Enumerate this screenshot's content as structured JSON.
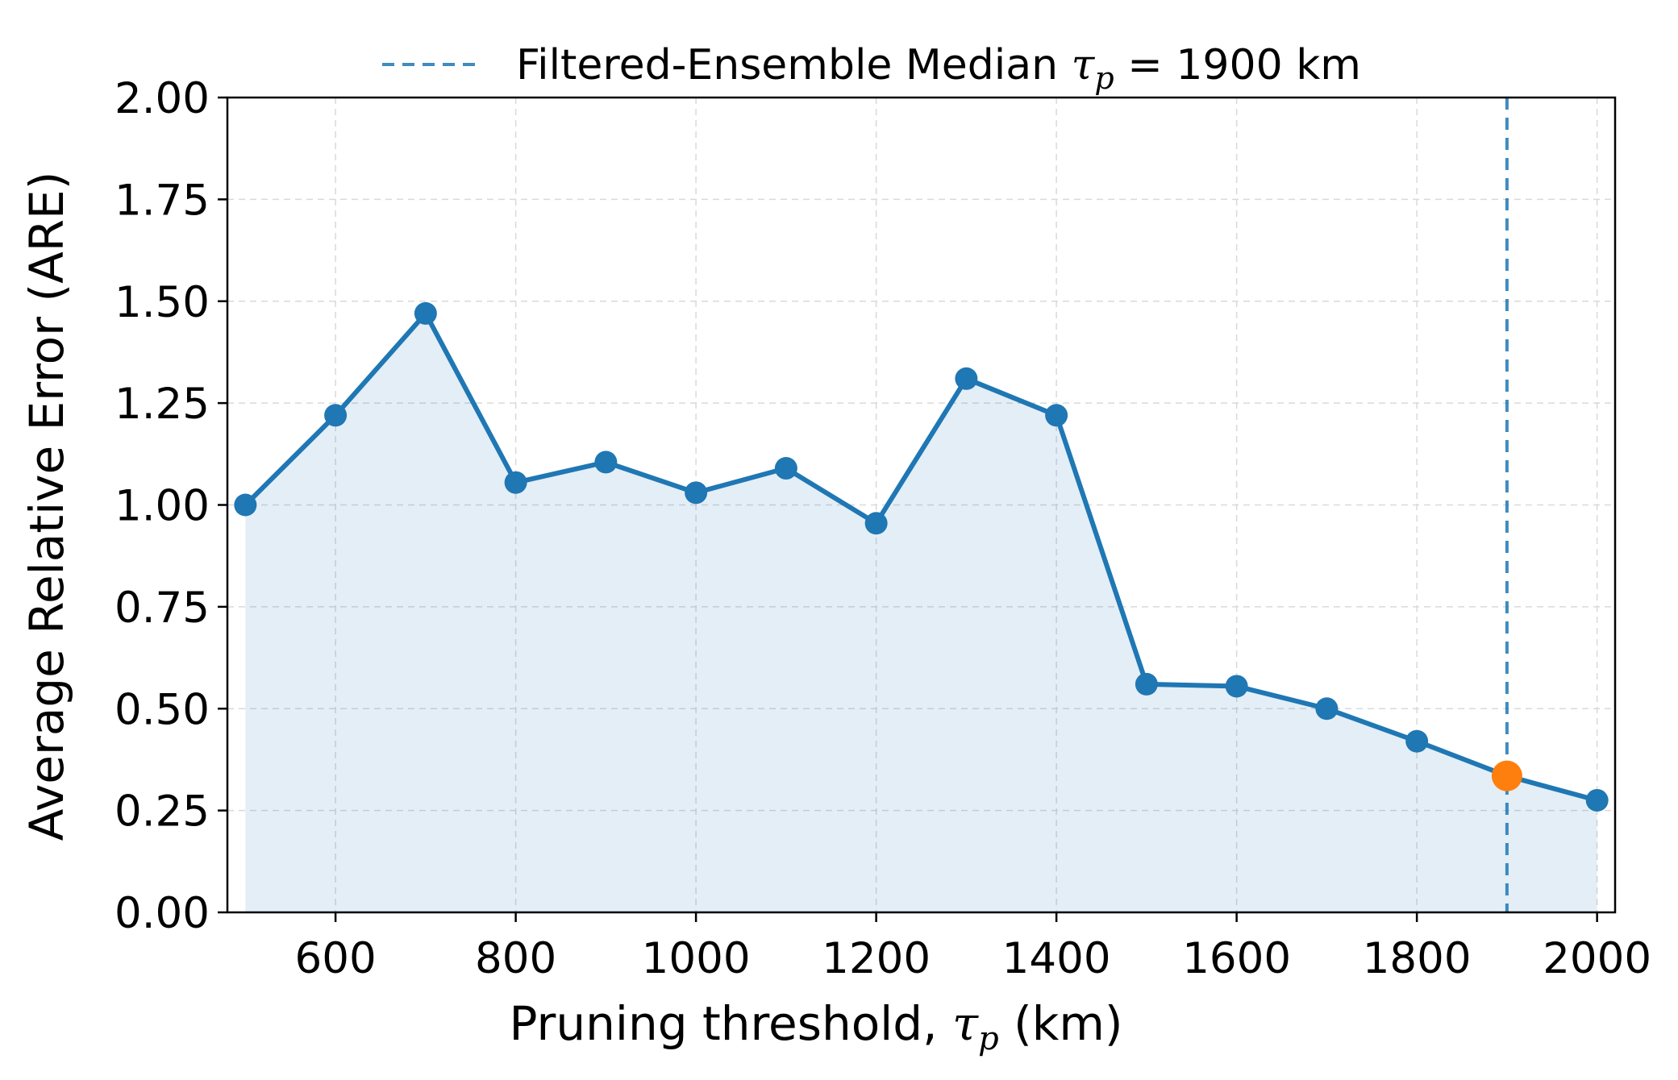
{
  "chart_data": {
    "type": "line",
    "xlabel": {
      "prefix": "Pruning threshold, ",
      "symbol": "τ",
      "sub": "p",
      "suffix": " (km)"
    },
    "ylabel": "Average Relative Error (ARE)",
    "xlim": [
      480,
      2020
    ],
    "ylim": [
      0,
      2
    ],
    "x_ticks": [
      600,
      800,
      1000,
      1200,
      1400,
      1600,
      1800,
      2000
    ],
    "x_tick_labels": [
      "600",
      "800",
      "1000",
      "1200",
      "1400",
      "1600",
      "1800",
      "2000"
    ],
    "y_ticks": [
      0,
      0.25,
      0.5,
      0.75,
      1.0,
      1.25,
      1.5,
      1.75,
      2.0
    ],
    "y_tick_labels": [
      "0.00",
      "0.25",
      "0.50",
      "0.75",
      "1.00",
      "1.25",
      "1.50",
      "1.75",
      "2.00"
    ],
    "grid": true,
    "legend_position": "top-center",
    "series": [
      {
        "x": [
          500,
          600,
          700,
          800,
          900,
          1000,
          1100,
          1200,
          1300,
          1400,
          1500,
          1600,
          1700,
          1800,
          1900,
          2000
        ],
        "y": [
          1.0,
          1.22,
          1.47,
          1.055,
          1.105,
          1.03,
          1.09,
          0.955,
          1.31,
          1.22,
          0.56,
          0.555,
          0.5,
          0.42,
          0.335,
          0.275
        ],
        "color": "#1f77b4",
        "fill": true
      }
    ],
    "highlight_point": {
      "x": 1900,
      "y": 0.335,
      "color": "#ff7f0e"
    },
    "reference_line": {
      "x": 1900,
      "color": "#1f77b4",
      "style": "dashed",
      "label": {
        "prefix": "Filtered-Ensemble Median ",
        "symbol": "τ",
        "sub": "p",
        "suffix": " = 1900 km"
      }
    }
  }
}
